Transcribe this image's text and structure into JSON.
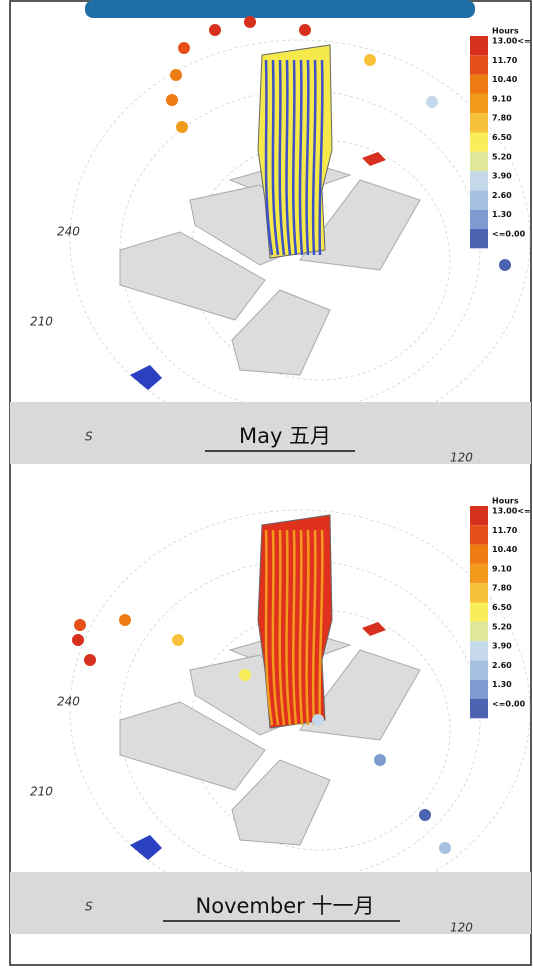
{
  "header": {
    "tab": ""
  },
  "panels": [
    {
      "caption": "May 五月",
      "compass": {
        "south": "S",
        "a210": "210",
        "a240": "240",
        "a120": "120"
      },
      "legend": {
        "title": "Hours",
        "items": [
          {
            "label": "13.00<=",
            "color": "#d7301f"
          },
          {
            "label": "11.70",
            "color": "#e5501a"
          },
          {
            "label": "10.40",
            "color": "#ee7a12"
          },
          {
            "label": "9.10",
            "color": "#f29a1c"
          },
          {
            "label": "7.80",
            "color": "#f7c23a"
          },
          {
            "label": "6.50",
            "color": "#f9ee5a"
          },
          {
            "label": "5.20",
            "color": "#dfe89a"
          },
          {
            "label": "3.90",
            "color": "#c5d9ea"
          },
          {
            "label": "2.60",
            "color": "#a6c0e2"
          },
          {
            "label": "1.30",
            "color": "#7d9bd0"
          },
          {
            "label": "<=0.00",
            "color": "#4b63b0"
          }
        ]
      }
    },
    {
      "caption": "November 十一月",
      "compass": {
        "south": "S",
        "a210": "210",
        "a240": "240",
        "a120": "120"
      },
      "legend": {
        "title": "Hours",
        "items": [
          {
            "label": "13.00<=",
            "color": "#d7301f"
          },
          {
            "label": "11.70",
            "color": "#e5501a"
          },
          {
            "label": "10.40",
            "color": "#ee7a12"
          },
          {
            "label": "9.10",
            "color": "#f29a1c"
          },
          {
            "label": "7.80",
            "color": "#f7c23a"
          },
          {
            "label": "6.50",
            "color": "#f9ee5a"
          },
          {
            "label": "5.20",
            "color": "#dfe89a"
          },
          {
            "label": "3.90",
            "color": "#c5d9ea"
          },
          {
            "label": "2.60",
            "color": "#a6c0e2"
          },
          {
            "label": "1.30",
            "color": "#7d9bd0"
          },
          {
            "label": "<=0.00",
            "color": "#4b63b0"
          }
        ]
      }
    }
  ]
}
